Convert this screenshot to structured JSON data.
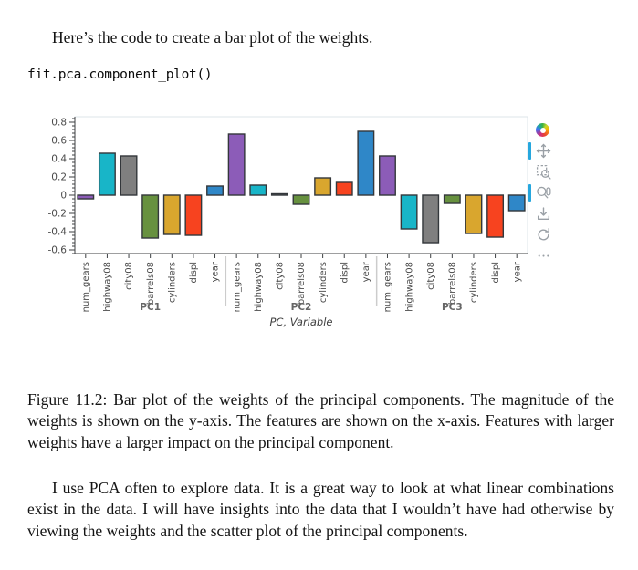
{
  "document": {
    "intro_text": "Here’s the code to create a bar plot of the weights.",
    "code_line": "fit.pca.component_plot()",
    "figure_caption": "Figure 11.2: Bar plot of the weights of the principal components.  The magnitude of the weights is shown on the y-axis.  The features are shown on the x-axis.  Features with larger weights have a larger impact on the principal component.",
    "closing_paragraph": "I use PCA often to explore data.  It is a great way to look at what linear combinations exist in the data.  I will have insights into the data that I wouldn’t have had otherwise by viewing the weights and the scatter plot of the principal components."
  },
  "chart_data": {
    "type": "bar",
    "title": "",
    "xlabel": "PC, Variable",
    "ylabel": "",
    "ylim": [
      -0.64,
      0.86
    ],
    "yticks": [
      0.8,
      0.6,
      0.4,
      0.2,
      0,
      -0.2,
      -0.4,
      -0.6
    ],
    "minor_tick_step": 0.04,
    "grid": false,
    "legend_position": "none",
    "groups": [
      "PC1",
      "PC2",
      "PC3"
    ],
    "categories": [
      "num_gears",
      "highway08",
      "city08",
      "barrels08",
      "cylinders",
      "displ",
      "year"
    ],
    "series": [
      {
        "name": "PC1",
        "values": [
          -0.04,
          0.46,
          0.43,
          -0.47,
          -0.43,
          -0.44,
          0.1
        ]
      },
      {
        "name": "PC2",
        "values": [
          0.67,
          0.11,
          0.015,
          -0.1,
          0.19,
          0.14,
          0.7
        ]
      },
      {
        "name": "PC3",
        "values": [
          0.43,
          -0.37,
          -0.52,
          -0.09,
          -0.42,
          -0.46,
          -0.17
        ]
      }
    ],
    "category_colors": [
      "#8c5cb8",
      "#18b5c8",
      "#7f7f7f",
      "#67913f",
      "#d9a62e",
      "#f7431f",
      "#2f87c8"
    ],
    "bar_edge_color": "#33373b",
    "axis_color": "#3c3f42",
    "frame_color": "#dde4ea",
    "tick_label_color": "#4a4a4a",
    "group_label_color": "#666666",
    "axis_title_color": "#3f3f3f",
    "separator_color": "#cccccc"
  },
  "toolbar": {
    "active_color": "#26a7de",
    "icon_color": "#9aa0a6",
    "tools": [
      {
        "name": "bokeh-logo",
        "label": "Bokeh",
        "active": false
      },
      {
        "name": "pan",
        "label": "Pan",
        "active": true
      },
      {
        "name": "box-zoom",
        "label": "Box Zoom",
        "active": false
      },
      {
        "name": "wheel-zoom",
        "label": "Wheel Zoom",
        "active": true
      },
      {
        "name": "save",
        "label": "Save",
        "active": false
      },
      {
        "name": "reset",
        "label": "Reset",
        "active": false
      },
      {
        "name": "help",
        "label": "Help",
        "active": false
      }
    ]
  }
}
